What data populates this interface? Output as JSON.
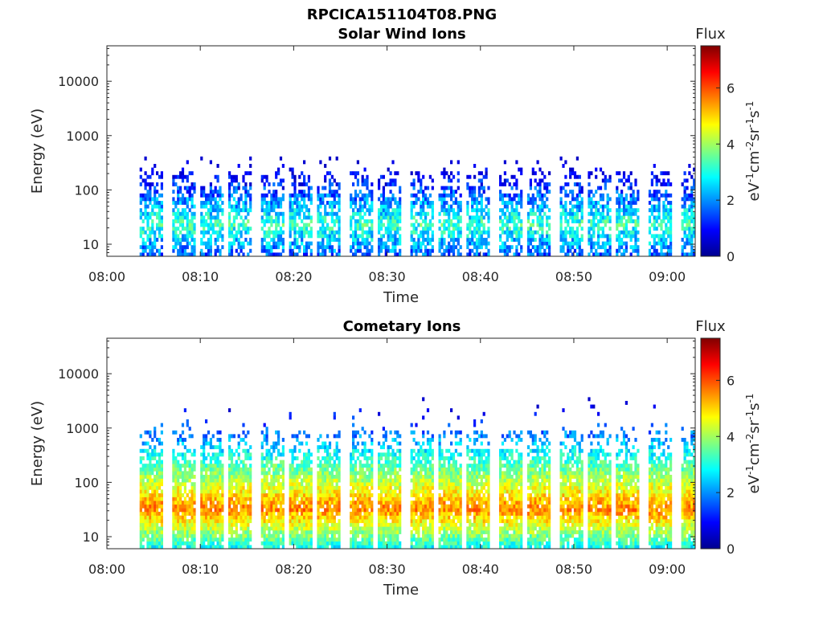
{
  "figure": {
    "title": "RPCICA151104T08.PNG"
  },
  "colors": {
    "colormap": "jet",
    "colormap_stops": [
      "#00008f",
      "#0000ff",
      "#00ffff",
      "#ffff00",
      "#ff0000",
      "#800000"
    ]
  },
  "chart_data": [
    {
      "type": "heatmap",
      "title": "Solar Wind Ions",
      "xlabel": "Time",
      "ylabel": "Energy (eV)",
      "x_ticks": [
        "08:00",
        "08:10",
        "08:20",
        "08:30",
        "08:40",
        "08:50",
        "09:00"
      ],
      "y_ticks": [
        "10",
        "100",
        "1000",
        "10000"
      ],
      "y_scale": "log",
      "ylim": [
        6,
        45000
      ],
      "xlim": [
        "08:00",
        "09:03"
      ],
      "colorbar": {
        "label": "Flux",
        "unit": "eV-1cm-2sr-1s-1",
        "ticks": [
          "0",
          "2",
          "4",
          "6"
        ],
        "range": [
          0,
          7.5
        ]
      },
      "sweep_start_minutes": [
        3.5,
        7.0,
        10.0,
        13.0,
        16.5,
        19.5,
        22.5,
        26.0,
        29.0,
        32.5,
        35.5,
        38.5,
        42.0,
        45.0,
        48.5,
        51.5,
        54.5,
        58.0,
        61.5
      ],
      "peak_flux": 3.2,
      "peak_energy_eV": 25
    },
    {
      "type": "heatmap",
      "title": "Cometary Ions",
      "xlabel": "Time",
      "ylabel": "Energy (eV)",
      "x_ticks": [
        "08:00",
        "08:10",
        "08:20",
        "08:30",
        "08:40",
        "08:50",
        "09:00"
      ],
      "y_ticks": [
        "10",
        "100",
        "1000",
        "10000"
      ],
      "y_scale": "log",
      "ylim": [
        6,
        45000
      ],
      "xlim": [
        "08:00",
        "09:03"
      ],
      "colorbar": {
        "label": "Flux",
        "unit": "eV-1cm-2sr-1s-1",
        "ticks": [
          "0",
          "2",
          "4",
          "6"
        ],
        "range": [
          0,
          7.5
        ]
      },
      "sweep_start_minutes": [
        3.5,
        7.0,
        10.0,
        13.0,
        16.5,
        19.5,
        22.5,
        26.0,
        29.0,
        32.5,
        35.5,
        38.5,
        42.0,
        45.0,
        48.5,
        51.5,
        54.5,
        58.0,
        61.5
      ],
      "peak_flux": 5.6,
      "peak_energy_eV": 35
    }
  ]
}
